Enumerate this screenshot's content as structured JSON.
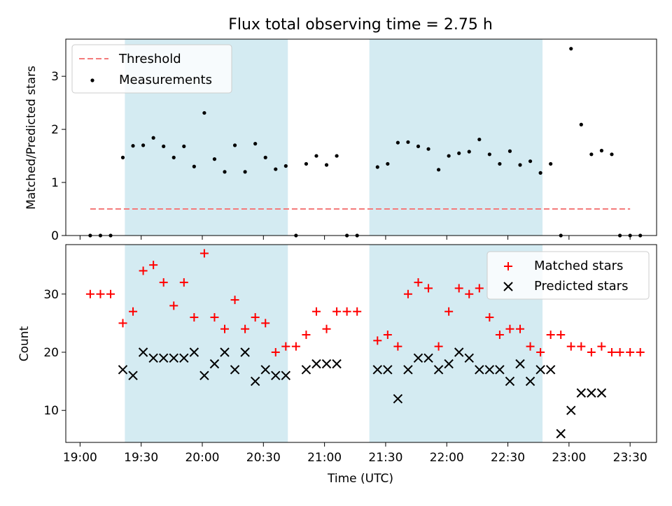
{
  "title": "Flux total observing time = 2.75 h",
  "chart_data": [
    {
      "type": "scatter",
      "panel": "top",
      "ylabel": "Matched/Predicted stars",
      "ylim": [
        0,
        3.7
      ],
      "yticks": [
        0,
        1,
        2,
        3
      ],
      "legend": {
        "placement": "top-left",
        "entries": [
          {
            "label": "Threshold",
            "kind": "dashed-line",
            "color": "#f47a7a"
          },
          {
            "label": "Measurements",
            "kind": "dot",
            "color": "#000000"
          }
        ]
      },
      "threshold": {
        "name": "Threshold",
        "value": 0.5,
        "x_start": "19:05",
        "x_end": "23:30",
        "color": "#f47a7a"
      },
      "series": [
        {
          "name": "Measurements",
          "color": "#000000",
          "points": [
            [
              "19:05",
              0
            ],
            [
              "19:10",
              0
            ],
            [
              "19:15",
              0
            ],
            [
              "19:21",
              1.47
            ],
            [
              "19:26",
              1.69
            ],
            [
              "19:31",
              1.7
            ],
            [
              "19:36",
              1.84
            ],
            [
              "19:41",
              1.68
            ],
            [
              "19:46",
              1.47
            ],
            [
              "19:51",
              1.68
            ],
            [
              "19:56",
              1.3
            ],
            [
              "20:01",
              2.31
            ],
            [
              "20:06",
              1.44
            ],
            [
              "20:11",
              1.2
            ],
            [
              "20:16",
              1.7
            ],
            [
              "20:21",
              1.2
            ],
            [
              "20:26",
              1.73
            ],
            [
              "20:31",
              1.47
            ],
            [
              "20:36",
              1.25
            ],
            [
              "20:41",
              1.31
            ],
            [
              "20:46",
              0
            ],
            [
              "20:51",
              1.35
            ],
            [
              "20:56",
              1.5
            ],
            [
              "21:01",
              1.33
            ],
            [
              "21:06",
              1.5
            ],
            [
              "21:11",
              0
            ],
            [
              "21:16",
              0
            ],
            [
              "21:26",
              1.29
            ],
            [
              "21:31",
              1.35
            ],
            [
              "21:36",
              1.75
            ],
            [
              "21:41",
              1.76
            ],
            [
              "21:46",
              1.68
            ],
            [
              "21:51",
              1.63
            ],
            [
              "21:56",
              1.24
            ],
            [
              "22:01",
              1.5
            ],
            [
              "22:06",
              1.55
            ],
            [
              "22:11",
              1.58
            ],
            [
              "22:16",
              1.81
            ],
            [
              "22:21",
              1.53
            ],
            [
              "22:26",
              1.35
            ],
            [
              "22:31",
              1.59
            ],
            [
              "22:36",
              1.33
            ],
            [
              "22:41",
              1.4
            ],
            [
              "22:46",
              1.18
            ],
            [
              "22:51",
              1.35
            ],
            [
              "22:56",
              0
            ],
            [
              "23:01",
              3.52
            ],
            [
              "23:06",
              2.09
            ],
            [
              "23:11",
              1.53
            ],
            [
              "23:16",
              1.6
            ],
            [
              "23:21",
              1.53
            ],
            [
              "23:25",
              0
            ],
            [
              "23:30",
              0
            ],
            [
              "23:35",
              0
            ]
          ]
        }
      ],
      "shaded_intervals": [
        [
          "19:22",
          "20:42"
        ],
        [
          "21:22",
          "22:47"
        ]
      ],
      "shade_color": "#add8e6"
    },
    {
      "type": "scatter",
      "panel": "bottom",
      "xlabel": "Time (UTC)",
      "ylabel": "Count",
      "ylim": [
        4.5,
        38.5
      ],
      "yticks": [
        10,
        20,
        30
      ],
      "xticks": [
        "19:00",
        "19:30",
        "20:00",
        "20:30",
        "21:00",
        "21:30",
        "22:00",
        "22:30",
        "23:00",
        "23:30"
      ],
      "xlim": [
        "18:53",
        "23:43"
      ],
      "legend": {
        "placement": "top-right",
        "entries": [
          {
            "label": "Matched stars",
            "kind": "plus",
            "color": "#ff0000"
          },
          {
            "label": "Predicted stars",
            "kind": "x",
            "color": "#000000"
          }
        ]
      },
      "series": [
        {
          "name": "Matched stars",
          "marker": "plus",
          "color": "#ff0000",
          "points": [
            [
              "19:05",
              30
            ],
            [
              "19:10",
              30
            ],
            [
              "19:15",
              30
            ],
            [
              "19:21",
              25
            ],
            [
              "19:26",
              27
            ],
            [
              "19:31",
              34
            ],
            [
              "19:36",
              35
            ],
            [
              "19:41",
              32
            ],
            [
              "19:46",
              28
            ],
            [
              "19:51",
              32
            ],
            [
              "19:56",
              26
            ],
            [
              "20:01",
              37
            ],
            [
              "20:06",
              26
            ],
            [
              "20:11",
              24
            ],
            [
              "20:16",
              29
            ],
            [
              "20:21",
              24
            ],
            [
              "20:26",
              26
            ],
            [
              "20:31",
              25
            ],
            [
              "20:36",
              20
            ],
            [
              "20:41",
              21
            ],
            [
              "20:46",
              21
            ],
            [
              "20:51",
              23
            ],
            [
              "20:56",
              27
            ],
            [
              "21:01",
              24
            ],
            [
              "21:06",
              27
            ],
            [
              "21:11",
              27
            ],
            [
              "21:16",
              27
            ],
            [
              "21:26",
              22
            ],
            [
              "21:31",
              23
            ],
            [
              "21:36",
              21
            ],
            [
              "21:41",
              30
            ],
            [
              "21:46",
              32
            ],
            [
              "21:51",
              31
            ],
            [
              "21:56",
              21
            ],
            [
              "22:01",
              27
            ],
            [
              "22:06",
              31
            ],
            [
              "22:11",
              30
            ],
            [
              "22:16",
              31
            ],
            [
              "22:21",
              26
            ],
            [
              "22:26",
              23
            ],
            [
              "22:31",
              24
            ],
            [
              "22:36",
              24
            ],
            [
              "22:41",
              21
            ],
            [
              "22:46",
              20
            ],
            [
              "22:51",
              23
            ],
            [
              "22:56",
              23
            ],
            [
              "23:01",
              21
            ],
            [
              "23:06",
              21
            ],
            [
              "23:11",
              20
            ],
            [
              "23:16",
              21
            ],
            [
              "23:21",
              20
            ],
            [
              "23:25",
              20
            ],
            [
              "23:30",
              20
            ],
            [
              "23:35",
              20
            ]
          ]
        },
        {
          "name": "Predicted stars",
          "marker": "x",
          "color": "#000000",
          "points": [
            [
              "19:21",
              17
            ],
            [
              "19:26",
              16
            ],
            [
              "19:31",
              20
            ],
            [
              "19:36",
              19
            ],
            [
              "19:41",
              19
            ],
            [
              "19:46",
              19
            ],
            [
              "19:51",
              19
            ],
            [
              "19:56",
              20
            ],
            [
              "20:01",
              16
            ],
            [
              "20:06",
              18
            ],
            [
              "20:11",
              20
            ],
            [
              "20:16",
              17
            ],
            [
              "20:21",
              20
            ],
            [
              "20:26",
              15
            ],
            [
              "20:31",
              17
            ],
            [
              "20:36",
              16
            ],
            [
              "20:41",
              16
            ],
            [
              "20:51",
              17
            ],
            [
              "20:56",
              18
            ],
            [
              "21:01",
              18
            ],
            [
              "21:06",
              18
            ],
            [
              "21:26",
              17
            ],
            [
              "21:31",
              17
            ],
            [
              "21:36",
              12
            ],
            [
              "21:41",
              17
            ],
            [
              "21:46",
              19
            ],
            [
              "21:51",
              19
            ],
            [
              "21:56",
              17
            ],
            [
              "22:01",
              18
            ],
            [
              "22:06",
              20
            ],
            [
              "22:11",
              19
            ],
            [
              "22:16",
              17
            ],
            [
              "22:21",
              17
            ],
            [
              "22:26",
              17
            ],
            [
              "22:31",
              15
            ],
            [
              "22:36",
              18
            ],
            [
              "22:41",
              15
            ],
            [
              "22:46",
              17
            ],
            [
              "22:51",
              17
            ],
            [
              "22:56",
              6
            ],
            [
              "23:01",
              10
            ],
            [
              "23:06",
              13
            ],
            [
              "23:11",
              13
            ],
            [
              "23:16",
              13
            ]
          ]
        }
      ],
      "shaded_intervals": [
        [
          "19:22",
          "20:42"
        ],
        [
          "21:22",
          "22:47"
        ]
      ],
      "shade_color": "#add8e6"
    }
  ]
}
